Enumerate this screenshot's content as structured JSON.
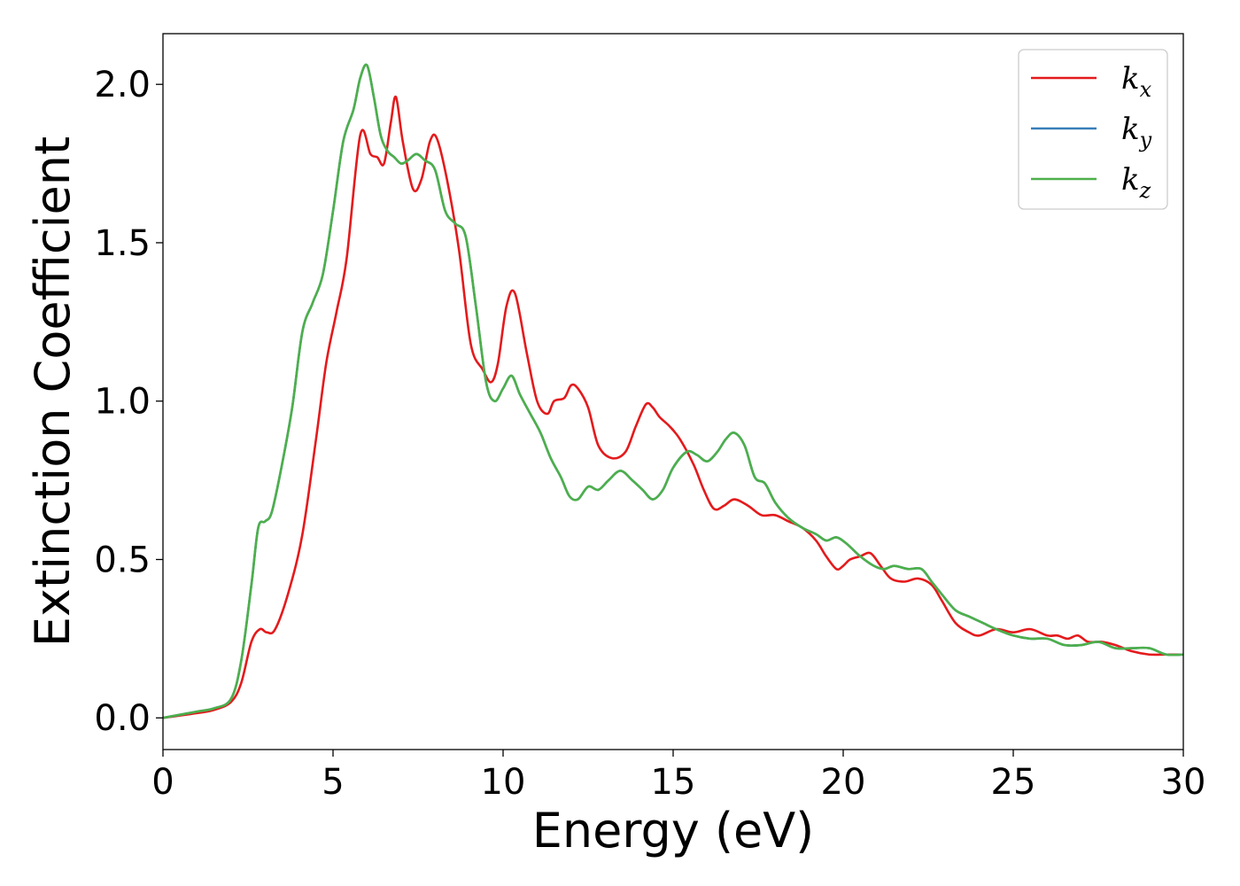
{
  "chart_data": {
    "type": "line",
    "xlabel": "Energy (eV)",
    "ylabel": "Extinction Coefficient",
    "xlim": [
      0,
      30
    ],
    "ylim": [
      -0.1,
      2.16
    ],
    "xticks": [
      0,
      5,
      10,
      15,
      20,
      25,
      30
    ],
    "xtick_labels": [
      "0",
      "5",
      "10",
      "15",
      "20",
      "25",
      "30"
    ],
    "yticks": [
      0.0,
      0.5,
      1.0,
      1.5,
      2.0
    ],
    "ytick_labels": [
      "0.0",
      "0.5",
      "1.0",
      "1.5",
      "2.0"
    ],
    "grid": false,
    "legend_position": "top-right",
    "series": [
      {
        "name": "k_x",
        "label_base": "k",
        "label_sub": "x",
        "color": "#e41a1c",
        "x": [
          0,
          1,
          1.5,
          2,
          2.3,
          2.6,
          2.85,
          3.05,
          3.3,
          3.7,
          4.1,
          4.5,
          4.8,
          5.1,
          5.4,
          5.8,
          6.1,
          6.3,
          6.5,
          6.7,
          6.85,
          7.05,
          7.35,
          7.6,
          7.85,
          8.05,
          8.35,
          8.7,
          9.05,
          9.4,
          9.65,
          9.85,
          10.1,
          10.35,
          10.7,
          11.0,
          11.3,
          11.5,
          11.8,
          12.0,
          12.2,
          12.5,
          12.8,
          13.2,
          13.6,
          13.9,
          14.2,
          14.4,
          14.6,
          14.9,
          15.2,
          15.6,
          15.9,
          16.2,
          16.5,
          16.8,
          17.2,
          17.6,
          18.0,
          18.4,
          18.8,
          19.2,
          19.5,
          19.8,
          20.0,
          20.2,
          20.5,
          20.8,
          21.1,
          21.4,
          21.8,
          22.2,
          22.6,
          22.9,
          23.3,
          23.7,
          24.0,
          24.5,
          25.0,
          25.5,
          26.0,
          26.3,
          26.6,
          26.9,
          27.2,
          27.6,
          28.0,
          28.5,
          29.0,
          29.5,
          30.0
        ],
        "values": [
          0.0,
          0.015,
          0.025,
          0.05,
          0.11,
          0.24,
          0.28,
          0.27,
          0.28,
          0.4,
          0.58,
          0.88,
          1.12,
          1.28,
          1.45,
          1.84,
          1.78,
          1.77,
          1.75,
          1.88,
          1.96,
          1.82,
          1.67,
          1.7,
          1.82,
          1.83,
          1.7,
          1.48,
          1.18,
          1.1,
          1.06,
          1.12,
          1.3,
          1.34,
          1.15,
          1.0,
          0.96,
          1.0,
          1.01,
          1.05,
          1.04,
          0.98,
          0.86,
          0.82,
          0.84,
          0.92,
          0.99,
          0.98,
          0.95,
          0.92,
          0.88,
          0.8,
          0.72,
          0.66,
          0.67,
          0.69,
          0.67,
          0.64,
          0.64,
          0.62,
          0.6,
          0.56,
          0.51,
          0.47,
          0.48,
          0.5,
          0.51,
          0.52,
          0.48,
          0.44,
          0.43,
          0.44,
          0.42,
          0.37,
          0.3,
          0.27,
          0.26,
          0.28,
          0.27,
          0.28,
          0.26,
          0.26,
          0.25,
          0.26,
          0.24,
          0.24,
          0.23,
          0.21,
          0.2,
          0.2,
          0.2
        ]
      },
      {
        "name": "k_y",
        "label_base": "k",
        "label_sub": "y",
        "color": "#377eb8",
        "x": [
          0,
          1,
          1.5,
          2,
          2.3,
          2.6,
          2.8,
          3.0,
          3.2,
          3.5,
          3.8,
          4.1,
          4.4,
          4.7,
          5.0,
          5.3,
          5.6,
          5.8,
          6.0,
          6.2,
          6.4,
          6.6,
          6.8,
          7.0,
          7.2,
          7.45,
          7.7,
          8.0,
          8.3,
          8.6,
          8.9,
          9.2,
          9.5,
          9.75,
          10.0,
          10.25,
          10.5,
          10.8,
          11.1,
          11.4,
          11.7,
          11.95,
          12.2,
          12.5,
          12.8,
          13.1,
          13.45,
          13.8,
          14.1,
          14.4,
          14.7,
          15.0,
          15.4,
          15.7,
          16.0,
          16.3,
          16.55,
          16.8,
          17.1,
          17.4,
          17.7,
          18.0,
          18.4,
          18.8,
          19.2,
          19.5,
          19.8,
          20.1,
          20.5,
          20.9,
          21.2,
          21.5,
          21.9,
          22.3,
          22.6,
          22.9,
          23.3,
          23.7,
          24.1,
          24.5,
          25.0,
          25.5,
          26.0,
          26.5,
          27.0,
          27.5,
          28.0,
          28.5,
          29.0,
          29.5,
          30.0
        ],
        "values": [
          0.0,
          0.02,
          0.03,
          0.06,
          0.18,
          0.42,
          0.6,
          0.62,
          0.65,
          0.8,
          0.98,
          1.22,
          1.31,
          1.4,
          1.6,
          1.82,
          1.92,
          2.02,
          2.06,
          1.96,
          1.84,
          1.79,
          1.77,
          1.75,
          1.76,
          1.78,
          1.76,
          1.73,
          1.6,
          1.56,
          1.52,
          1.3,
          1.06,
          1.0,
          1.04,
          1.08,
          1.02,
          0.96,
          0.9,
          0.82,
          0.76,
          0.7,
          0.69,
          0.73,
          0.72,
          0.75,
          0.78,
          0.75,
          0.72,
          0.69,
          0.72,
          0.79,
          0.84,
          0.83,
          0.81,
          0.84,
          0.88,
          0.9,
          0.86,
          0.76,
          0.74,
          0.68,
          0.63,
          0.6,
          0.58,
          0.56,
          0.57,
          0.55,
          0.51,
          0.48,
          0.47,
          0.48,
          0.47,
          0.47,
          0.43,
          0.39,
          0.34,
          0.32,
          0.3,
          0.28,
          0.26,
          0.25,
          0.25,
          0.23,
          0.23,
          0.24,
          0.22,
          0.22,
          0.22,
          0.2,
          0.2
        ]
      },
      {
        "name": "k_z",
        "label_base": "k",
        "label_sub": "z",
        "color": "#4daf4a",
        "x": [
          0,
          1,
          1.5,
          2,
          2.3,
          2.6,
          2.8,
          3.0,
          3.2,
          3.5,
          3.8,
          4.1,
          4.4,
          4.7,
          5.0,
          5.3,
          5.6,
          5.8,
          6.0,
          6.2,
          6.4,
          6.6,
          6.8,
          7.0,
          7.2,
          7.45,
          7.7,
          8.0,
          8.3,
          8.6,
          8.9,
          9.2,
          9.5,
          9.75,
          10.0,
          10.25,
          10.5,
          10.8,
          11.1,
          11.4,
          11.7,
          11.95,
          12.2,
          12.5,
          12.8,
          13.1,
          13.45,
          13.8,
          14.1,
          14.4,
          14.7,
          15.0,
          15.4,
          15.7,
          16.0,
          16.3,
          16.55,
          16.8,
          17.1,
          17.4,
          17.7,
          18.0,
          18.4,
          18.8,
          19.2,
          19.5,
          19.8,
          20.1,
          20.5,
          20.9,
          21.2,
          21.5,
          21.9,
          22.3,
          22.6,
          22.9,
          23.3,
          23.7,
          24.1,
          24.5,
          25.0,
          25.5,
          26.0,
          26.5,
          27.0,
          27.5,
          28.0,
          28.5,
          29.0,
          29.5,
          30.0
        ],
        "values": [
          0.0,
          0.02,
          0.03,
          0.06,
          0.18,
          0.42,
          0.6,
          0.62,
          0.65,
          0.8,
          0.98,
          1.22,
          1.31,
          1.4,
          1.6,
          1.82,
          1.92,
          2.02,
          2.06,
          1.96,
          1.84,
          1.79,
          1.77,
          1.75,
          1.76,
          1.78,
          1.76,
          1.73,
          1.6,
          1.56,
          1.52,
          1.3,
          1.06,
          1.0,
          1.04,
          1.08,
          1.02,
          0.96,
          0.9,
          0.82,
          0.76,
          0.7,
          0.69,
          0.73,
          0.72,
          0.75,
          0.78,
          0.75,
          0.72,
          0.69,
          0.72,
          0.79,
          0.84,
          0.83,
          0.81,
          0.84,
          0.88,
          0.9,
          0.86,
          0.76,
          0.74,
          0.68,
          0.63,
          0.6,
          0.58,
          0.56,
          0.57,
          0.55,
          0.51,
          0.48,
          0.47,
          0.48,
          0.47,
          0.47,
          0.43,
          0.39,
          0.34,
          0.32,
          0.3,
          0.28,
          0.26,
          0.25,
          0.25,
          0.23,
          0.23,
          0.24,
          0.22,
          0.22,
          0.22,
          0.2,
          0.2
        ]
      }
    ]
  }
}
